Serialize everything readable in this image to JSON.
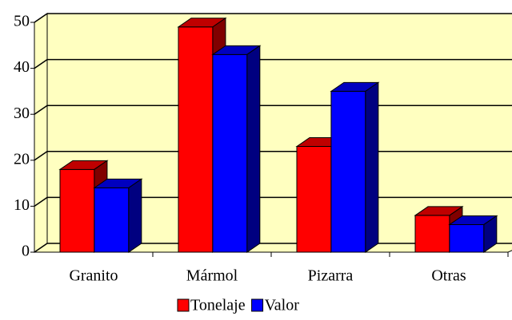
{
  "chart_data": {
    "type": "bar",
    "categories": [
      "Granito",
      "Mármol",
      "Pizarra",
      "Otras"
    ],
    "series": [
      {
        "name": "Tonelaje",
        "color": "#ff0000",
        "values": [
          18,
          49,
          23,
          8
        ]
      },
      {
        "name": "Valor",
        "color": "#0000ff",
        "values": [
          14,
          43,
          35,
          6
        ]
      }
    ],
    "ylim": [
      0,
      50
    ],
    "yticks": [
      0,
      10,
      20,
      30,
      40,
      50
    ],
    "grid": true,
    "legend": "bottom"
  }
}
